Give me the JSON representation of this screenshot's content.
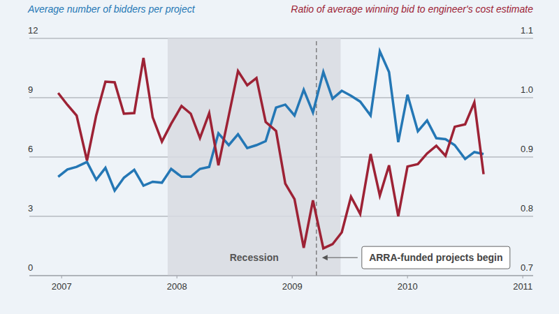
{
  "chart_data": {
    "type": "line",
    "y_label": "Average number of bidders per project",
    "y2_label": "Ratio of average winning bid to engineer's cost estimate",
    "x": [
      2006.97,
      2007.05,
      2007.13,
      2007.22,
      2007.3,
      2007.38,
      2007.46,
      2007.54,
      2007.63,
      2007.71,
      2007.79,
      2007.87,
      2007.95,
      2008.04,
      2008.12,
      2008.2,
      2008.28,
      2008.36,
      2008.45,
      2008.53,
      2008.61,
      2008.69,
      2008.77,
      2008.86,
      2008.94,
      2009.02,
      2009.1,
      2009.18,
      2009.27,
      2009.35,
      2009.43,
      2009.51,
      2009.59,
      2009.68,
      2009.76,
      2009.84,
      2009.92,
      2010.0,
      2010.09,
      2010.17,
      2010.25,
      2010.33,
      2010.41,
      2010.5,
      2010.58,
      2010.66
    ],
    "xlim": [
      2006.72,
      2011.09
    ],
    "xticks": [
      2007,
      2008,
      2009,
      2010,
      2011
    ],
    "ylim": [
      0,
      12
    ],
    "yticks": [
      0,
      3,
      6,
      9,
      12
    ],
    "y2lim": [
      0.7,
      1.1
    ],
    "y2ticks": [
      0.7,
      0.8,
      0.9,
      {
        "value": 1,
        "label": "1.0"
      },
      1.1
    ],
    "grid": true,
    "series": [
      {
        "name": "Average number of bidders per project",
        "color": "#2477b5",
        "values": [
          5.0,
          5.37,
          5.5,
          5.75,
          4.85,
          5.45,
          4.3,
          4.95,
          5.35,
          4.55,
          4.75,
          4.7,
          5.4,
          5.0,
          5.0,
          5.4,
          5.5,
          7.2,
          6.6,
          7.15,
          6.45,
          6.6,
          6.8,
          8.5,
          8.65,
          8.1,
          9.4,
          8.25,
          10.3,
          8.95,
          9.35,
          9.1,
          8.8,
          8.1,
          11.35,
          10.3,
          6.75,
          9.15,
          7.3,
          7.85,
          6.95,
          6.9,
          6.6,
          5.9,
          6.25,
          6.15
        ]
      },
      {
        "name": "Ratio of average winning bid to engineer's cost estimate",
        "color": "#9d2235",
        "axis": "y2",
        "values": [
          1.008,
          0.988,
          0.97,
          0.894,
          0.97,
          1.027,
          1.026,
          0.973,
          0.974,
          1.067,
          0.967,
          0.926,
          0.956,
          0.986,
          0.973,
          0.932,
          0.974,
          0.886,
          0.97,
          1.045,
          1.021,
          1.033,
          0.959,
          0.944,
          0.855,
          0.829,
          0.747,
          0.827,
          0.746,
          0.753,
          0.773,
          0.833,
          0.804,
          0.905,
          0.835,
          0.886,
          0.8,
          0.884,
          0.888,
          0.906,
          0.919,
          0.902,
          0.951,
          0.955,
          0.992,
          0.871
        ]
      }
    ],
    "shaded_regions": [
      {
        "label": "Recession",
        "x_start": 2007.92,
        "x_end": 2009.42
      }
    ],
    "annotations": [
      {
        "text": "ARRA-funded projects begin",
        "x": 2009.21
      }
    ]
  }
}
